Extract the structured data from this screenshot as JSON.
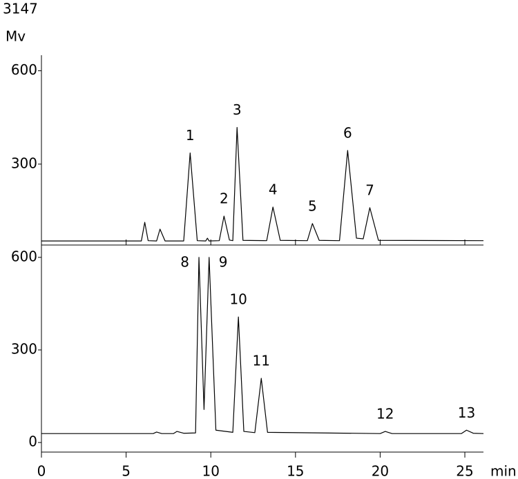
{
  "chart_data": [
    {
      "type": "line",
      "title": "3147",
      "ylabel": "Mv",
      "xlim": [
        0,
        26.1
      ],
      "xticks": [
        5,
        10,
        15,
        20,
        25
      ],
      "ylim": [
        40,
        650
      ],
      "yticks": [
        300,
        600
      ],
      "x": [
        0,
        5.9,
        6.1,
        6.3,
        6.8,
        7.0,
        7.3,
        8.4,
        8.78,
        9.2,
        9.7,
        9.8,
        9.9,
        10.5,
        10.78,
        11.1,
        11.3,
        11.55,
        11.9,
        13.3,
        13.67,
        14.1,
        15.7,
        16.0,
        16.4,
        17.6,
        18.08,
        18.6,
        19.0,
        19.39,
        19.9,
        26.1
      ],
      "series": [
        {
          "color": "#000000",
          "values": [
            53,
            53,
            113,
            54,
            53,
            91,
            53,
            53,
            336,
            54,
            53,
            62,
            53,
            54,
            133,
            56,
            54,
            418,
            55,
            54,
            162,
            55,
            54,
            109,
            55,
            54,
            344,
            62,
            60,
            160,
            55,
            54
          ],
          "point_labels": [
            null,
            null,
            null,
            null,
            null,
            null,
            null,
            null,
            "1",
            null,
            null,
            null,
            null,
            null,
            "2",
            null,
            null,
            "3",
            null,
            null,
            "4",
            null,
            null,
            "5",
            null,
            null,
            "6",
            null,
            null,
            "7",
            null,
            null
          ]
        }
      ]
    },
    {
      "type": "line",
      "xlabel": "min",
      "xlim": [
        0,
        26.1
      ],
      "xticks": [
        0,
        5,
        10,
        15,
        20,
        25
      ],
      "ylim": [
        -31,
        640
      ],
      "yticks": [
        0,
        300,
        600
      ],
      "x": [
        0,
        6.6,
        6.8,
        7.1,
        7.8,
        8.0,
        8.4,
        9.1,
        9.3,
        9.6,
        9.9,
        10.3,
        11.3,
        11.63,
        11.95,
        12.6,
        12.98,
        13.35,
        20.0,
        20.3,
        20.7,
        24.8,
        25.1,
        25.5,
        26.1
      ],
      "series": [
        {
          "color": "#000000",
          "values": [
            29,
            29,
            34,
            29,
            29,
            36,
            30,
            31,
            600,
            107,
            600,
            40,
            33,
            407,
            36,
            32,
            208,
            33,
            29,
            36,
            29,
            29,
            40,
            30,
            29
          ],
          "point_labels": [
            null,
            null,
            null,
            null,
            null,
            null,
            null,
            null,
            "8",
            null,
            "9",
            null,
            null,
            "10",
            null,
            null,
            "11",
            null,
            null,
            "12",
            null,
            null,
            "13",
            null,
            null
          ]
        }
      ]
    }
  ]
}
